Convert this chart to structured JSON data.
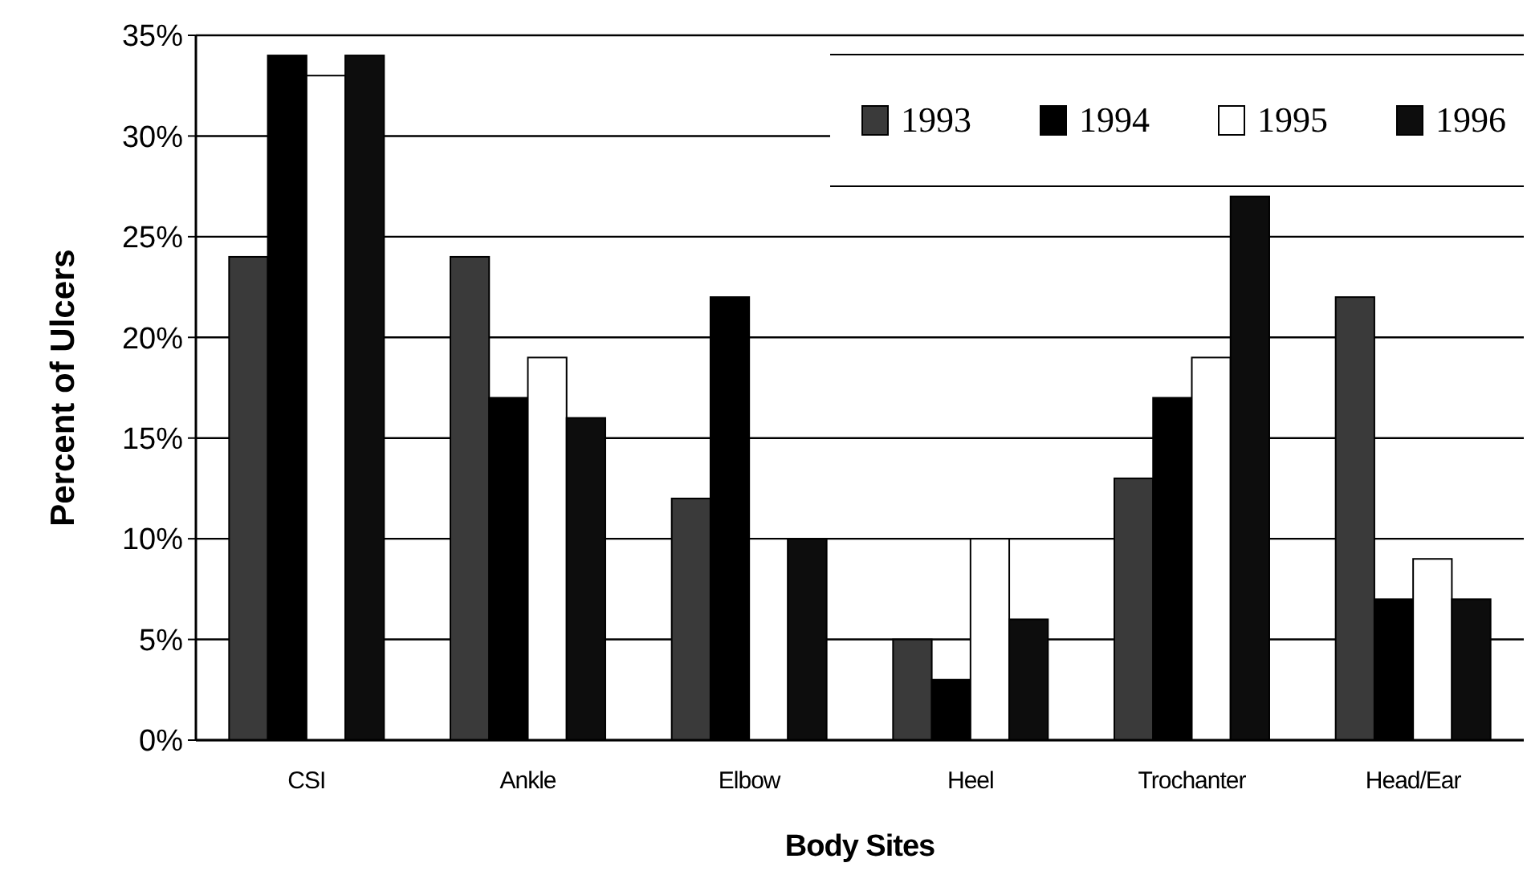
{
  "chart_data": {
    "type": "bar",
    "xlabel": "Body Sites",
    "ylabel": "Percent of Ulcers",
    "categories": [
      "CSI",
      "Ankle",
      "Elbow",
      "Heel",
      "Trochanter",
      "Head/Ear"
    ],
    "series": [
      {
        "name": "1993",
        "color": "#3a3a3a",
        "values": [
          24,
          24,
          12,
          5,
          13,
          22
        ]
      },
      {
        "name": "1994",
        "color": "#000000",
        "values": [
          34,
          17,
          22,
          3,
          17,
          7
        ]
      },
      {
        "name": "1995",
        "color": "#ffffff",
        "values": [
          33,
          19,
          10,
          10,
          19,
          9
        ]
      },
      {
        "name": "1996",
        "color": "#0d0d0d",
        "values": [
          34,
          16,
          10,
          6,
          27,
          7
        ]
      }
    ],
    "ylim": [
      0,
      35
    ],
    "yticks": [
      {
        "value": 0,
        "label": "0%"
      },
      {
        "value": 5,
        "label": "5%"
      },
      {
        "value": 10,
        "label": "10%"
      },
      {
        "value": 15,
        "label": "15%"
      },
      {
        "value": 20,
        "label": "20%"
      },
      {
        "value": 25,
        "label": "25%"
      },
      {
        "value": 30,
        "label": "30%"
      },
      {
        "value": 35,
        "label": "35%"
      }
    ],
    "grid": "y",
    "legend": "top right"
  }
}
